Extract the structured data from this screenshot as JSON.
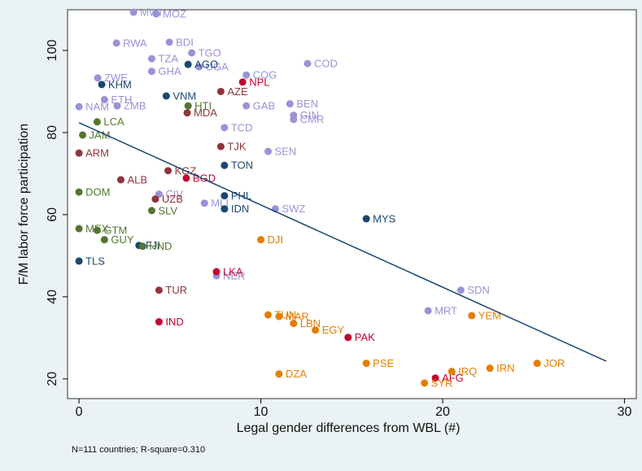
{
  "chart_data": {
    "type": "scatter",
    "xlabel": "Legal gender differences from WBL (#)",
    "ylabel": "F/M labor force participation",
    "note": "N=111 countries; R-square=0.310",
    "xlim": [
      -0.63,
      30.65
    ],
    "ylim": [
      15.2,
      109.9
    ],
    "xticks": [
      0,
      10,
      20,
      30
    ],
    "yticks": [
      20,
      40,
      60,
      80,
      100
    ],
    "grid": false,
    "series": [
      {
        "color": "#9a92d6",
        "x": [
          3.0,
          4.25,
          2.06,
          4.97,
          6.2,
          4.0,
          6.6,
          12.57,
          4.0,
          9.2,
          1.03,
          0,
          1.4,
          9.2,
          11.6,
          11.8,
          11.8,
          8.0,
          10.4,
          2.1,
          6.9,
          10.8,
          4.4,
          21.0,
          19.2,
          7.56
        ],
        "values": [
          109.3,
          108.9,
          101.8,
          102,
          99.4,
          98,
          96,
          96.8,
          94.9,
          94,
          93.3,
          86.3,
          88,
          86.5,
          87,
          84.2,
          83.2,
          81.2,
          75.4,
          86.5,
          62.8,
          61.4,
          65,
          41.6,
          36.6,
          45.1
        ],
        "labels": [
          "MWI",
          "MOZ",
          "RWA",
          "BDI",
          "TGO",
          "TZA",
          "UGA",
          "COD",
          "GHA",
          "COG",
          "ZWE",
          "NAM",
          "ETH",
          "GAB",
          "BEN",
          "GIN",
          "CMR",
          "TCD",
          "SEN",
          "ZMB",
          "MLI",
          "SWZ",
          "CIV",
          "SDN",
          "MRT",
          "NER"
        ]
      },
      {
        "color": "#1a476f",
        "x": [
          6.0,
          1.25,
          4.8,
          8.0,
          8.0,
          8.0,
          15.8,
          0,
          3.3
        ],
        "values": [
          96.6,
          91.7,
          88.9,
          72,
          64.6,
          61.4,
          59,
          48.7,
          52.5
        ],
        "labels": [
          "AGO",
          "KHM",
          "VNM",
          "TON",
          "PHL",
          "IDN",
          "MYS",
          "TLS",
          "FJI"
        ]
      },
      {
        "color": "#90353b",
        "x": [
          7.8,
          5.95,
          7.8,
          0,
          4.9,
          2.3,
          4.2,
          4.4
        ],
        "values": [
          90,
          84.8,
          76.6,
          75,
          70.7,
          68.5,
          63.8,
          41.6
        ],
        "labels": [
          "AZE",
          "MDA",
          "TJK",
          "ARM",
          "KGZ",
          "ALB",
          "UZB",
          "TUR"
        ]
      },
      {
        "color": "#c10534",
        "x": [
          9.0,
          5.9,
          7.56,
          4.4,
          14.8,
          19.6
        ],
        "values": [
          92.3,
          68.9,
          46.1,
          33.9,
          30.1,
          20.2
        ],
        "labels": [
          "NPL",
          "BGD",
          "LKA",
          "IND",
          "PAK",
          "AFG"
        ]
      },
      {
        "color": "#55752f",
        "x": [
          6.0,
          1.0,
          0.2,
          0,
          1.0,
          0,
          1.4,
          4.0,
          3.5
        ],
        "values": [
          86.5,
          82.6,
          79.4,
          65.5,
          56.2,
          56.6,
          53.9,
          61.0,
          52.3
        ],
        "labels": [
          "HTI",
          "LCA",
          "JAM",
          "DOM",
          "GTM",
          "MEX",
          "GUY",
          "SLV",
          "HND"
        ]
      },
      {
        "color": "#e37e00",
        "x": [
          10.0,
          10.4,
          11.0,
          11.8,
          13.0,
          21.6,
          11.0,
          15.8,
          20.5,
          22.6,
          25.2,
          19.0
        ],
        "values": [
          53.9,
          35.6,
          35.2,
          33.5,
          31.9,
          35.4,
          21.2,
          23.8,
          21.8,
          22.6,
          23.8,
          19.0
        ],
        "labels": [
          "DJI",
          "TUN",
          "MAR",
          "LBN",
          "EGY",
          "YEM",
          "DZA",
          "PSE",
          "IRQ",
          "IRN",
          "JOR",
          "SYR"
        ]
      }
    ],
    "fit": {
      "color": "#1a476f",
      "x": [
        0,
        29
      ],
      "y": [
        82.4,
        24.3
      ]
    }
  }
}
